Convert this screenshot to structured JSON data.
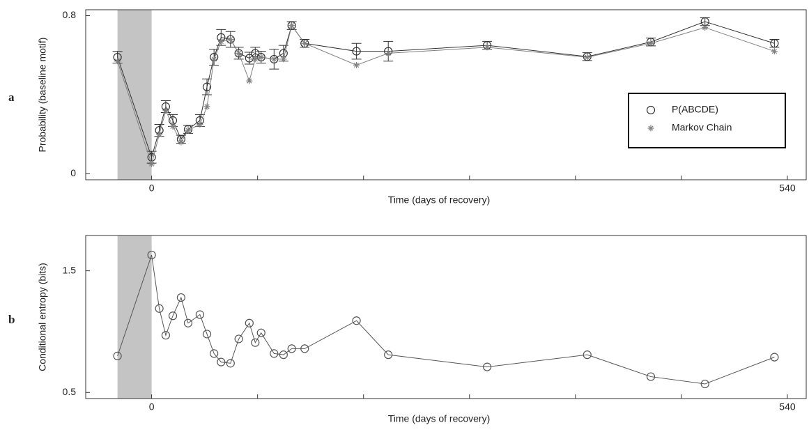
{
  "chart_data": [
    {
      "type": "line",
      "panel_label": "a",
      "x_label": "Time (days of recovery)",
      "y_label": "Probability (baseline motif)",
      "x": [
        -29,
        0,
        6.5,
        12,
        18,
        25,
        31,
        41,
        47,
        53,
        59,
        67,
        74,
        83,
        88,
        93,
        104,
        112,
        119,
        130,
        174,
        201,
        285,
        370,
        424,
        470,
        529
      ],
      "series": [
        {
          "name": "P(ABCDE)",
          "marker": "circle",
          "color": "#333333",
          "values": [
            0.59,
            0.084,
            0.22,
            0.34,
            0.27,
            0.175,
            0.225,
            0.27,
            0.44,
            0.59,
            0.69,
            0.68,
            0.61,
            0.585,
            0.61,
            0.59,
            0.58,
            0.61,
            0.75,
            0.66,
            0.62,
            0.62,
            0.65,
            0.593,
            0.667,
            0.77,
            0.66
          ],
          "errors": [
            0.03,
            0.03,
            0.03,
            0.03,
            0.03,
            0.02,
            0.02,
            0.03,
            0.04,
            0.04,
            0.04,
            0.04,
            0.03,
            0.03,
            0.03,
            0.03,
            0.05,
            0.04,
            0.02,
            0.02,
            0.04,
            0.05,
            0.02,
            0.02,
            0.02,
            0.02,
            0.02
          ]
        },
        {
          "name": "Markov Chain",
          "marker": "asterisk",
          "color": "#808080",
          "values": [
            0.57,
            0.05,
            0.2,
            0.32,
            0.24,
            0.16,
            0.22,
            0.25,
            0.34,
            0.58,
            0.67,
            0.68,
            0.61,
            0.47,
            0.58,
            0.59,
            0.58,
            0.58,
            0.75,
            0.66,
            0.55,
            0.61,
            0.64,
            0.59,
            0.66,
            0.74,
            0.62
          ]
        }
      ],
      "xlim": [
        -56,
        556
      ],
      "xticks": [
        0,
        540
      ],
      "minor_xticks": [
        90,
        180,
        270,
        360,
        450
      ],
      "ylim": [
        -0.03,
        0.83
      ],
      "yticks": [
        0,
        0.8
      ],
      "shaded_region": [
        -29,
        0
      ],
      "legend": "right"
    },
    {
      "type": "line",
      "panel_label": "b",
      "x_label": "Time (days of recovery)",
      "y_label": "Conditional entropy (bits)",
      "x": [
        -29,
        0,
        6.5,
        12,
        18,
        25,
        31,
        41,
        47,
        53,
        59,
        67,
        74,
        83,
        88,
        93,
        104,
        112,
        119,
        130,
        174,
        201,
        285,
        370,
        424,
        470,
        529
      ],
      "series": [
        {
          "marker": "circle",
          "color": "#555555",
          "values": [
            0.8,
            1.63,
            1.19,
            0.97,
            1.13,
            1.28,
            1.07,
            1.14,
            0.98,
            0.82,
            0.75,
            0.74,
            0.94,
            1.07,
            0.91,
            0.99,
            0.82,
            0.81,
            0.86,
            0.86,
            1.09,
            0.81,
            0.71,
            0.81,
            0.63,
            0.57,
            0.79
          ]
        }
      ],
      "xlim": [
        -56,
        556
      ],
      "xticks": [
        0,
        540
      ],
      "minor_xticks": [
        90,
        180,
        270,
        360,
        450
      ],
      "ylim": [
        0.45,
        1.79
      ],
      "yticks": [
        0.5,
        1.5
      ],
      "shaded_region": [
        -29,
        0
      ]
    }
  ]
}
